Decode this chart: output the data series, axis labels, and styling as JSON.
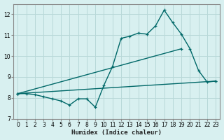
{
  "xlabel": "Humidex (Indice chaleur)",
  "bg_color": "#d8f0f0",
  "grid_color": "#b8d8d8",
  "line_color": "#006868",
  "xlim": [
    -0.5,
    23.5
  ],
  "ylim": [
    7,
    12.5
  ],
  "xticks": [
    0,
    1,
    2,
    3,
    4,
    5,
    6,
    7,
    8,
    9,
    10,
    11,
    12,
    13,
    14,
    15,
    16,
    17,
    18,
    19,
    20,
    21,
    22,
    23
  ],
  "yticks": [
    7,
    8,
    9,
    10,
    11,
    12
  ],
  "line1_x": [
    0,
    1,
    2,
    3,
    4,
    5,
    6,
    7,
    8,
    9,
    10,
    11,
    12,
    13,
    14,
    15,
    16,
    17,
    18,
    19,
    20,
    21,
    22,
    23
  ],
  "line1_y": [
    8.2,
    8.2,
    8.15,
    8.05,
    7.95,
    7.85,
    7.65,
    7.95,
    7.95,
    7.55,
    8.6,
    9.5,
    10.85,
    10.95,
    11.1,
    11.05,
    11.45,
    12.2,
    11.6,
    11.05,
    10.35,
    9.3,
    8.75,
    8.8
  ],
  "line2_x": [
    0,
    23
  ],
  "line2_y": [
    8.2,
    8.8
  ],
  "line3_x": [
    0,
    19
  ],
  "line3_y": [
    8.2,
    10.35
  ],
  "marker_size": 3.5,
  "line_width": 1.0
}
